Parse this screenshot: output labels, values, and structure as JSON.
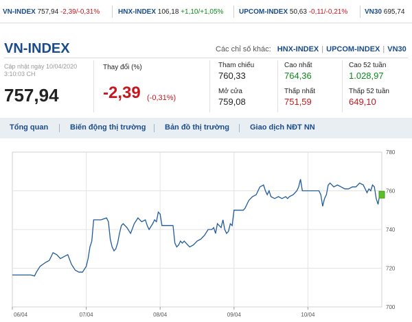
{
  "ticker": [
    {
      "name": "VN-INDEX",
      "value": "757,94",
      "change": "-2,39/-0,31%",
      "dir": "down"
    },
    {
      "name": "HNX-INDEX",
      "value": "106,18",
      "change": "+1,10/+1,05%",
      "dir": "up"
    },
    {
      "name": "UPCOM-INDEX",
      "value": "50,63",
      "change": "-0,11/-0,21%",
      "dir": "down"
    },
    {
      "name": "VN30",
      "value": "695,74",
      "change": "",
      "dir": ""
    }
  ],
  "header": {
    "title": "VN-INDEX",
    "others_label": "Các chỉ số khác:",
    "others": [
      "HNX-INDEX",
      "UPCOM-INDEX",
      "VN30"
    ]
  },
  "summary": {
    "updated": "Cập nhật ngày 10/04/2020 3:10:03 CH",
    "price": "757,94",
    "change_label": "Thay đổi (%)",
    "change": "-2,39",
    "change_pct": "(-0,31%)",
    "stats": {
      "ref_label": "Tham chiếu",
      "ref": "760,33",
      "open_label": "Mở cửa",
      "open": "759,08",
      "high_label": "Cao nhất",
      "high": "764,36",
      "low_label": "Thấp nhất",
      "low": "751,59",
      "high52_label": "Cao 52 tuần",
      "high52": "1.028,97",
      "low52_label": "Thấp 52 tuần",
      "low52": "649,10"
    }
  },
  "tabs": [
    "Tổng quan",
    "Biến động thị trường",
    "Bản đồ thị trường",
    "Giao dịch NĐT NN"
  ],
  "colors": {
    "brand": "#1a4b8c",
    "down": "#c8161d",
    "up": "#0b8a1a",
    "line": "#1f5a9a",
    "marker": "#5cbf2a"
  },
  "chart_data": {
    "type": "line",
    "x_ticks": [
      "06/04",
      "07/04",
      "08/04",
      "09/04",
      "10/04"
    ],
    "y_ticks": [
      700,
      720,
      740,
      760,
      780
    ],
    "ylim": [
      700,
      780
    ],
    "grid": true,
    "series": [
      {
        "values": [
          [
            0.0,
            716.5
          ],
          [
            0.05,
            716.5
          ],
          [
            0.06,
            716
          ],
          [
            0.065,
            718
          ],
          [
            0.075,
            721
          ],
          [
            0.09,
            723
          ],
          [
            0.1,
            724
          ],
          [
            0.11,
            728
          ],
          [
            0.12,
            727
          ],
          [
            0.13,
            725
          ],
          [
            0.14,
            726
          ],
          [
            0.15,
            727
          ],
          [
            0.16,
            722
          ],
          [
            0.17,
            719
          ],
          [
            0.18,
            718
          ],
          [
            0.19,
            718
          ],
          [
            0.2,
            721
          ],
          [
            0.205,
            725
          ],
          [
            0.21,
            731
          ],
          [
            0.215,
            734
          ],
          [
            0.22,
            745
          ],
          [
            0.24,
            745
          ],
          [
            0.255,
            746
          ],
          [
            0.26,
            744
          ],
          [
            0.265,
            735
          ],
          [
            0.27,
            731
          ],
          [
            0.275,
            729
          ],
          [
            0.28,
            730
          ],
          [
            0.285,
            733
          ],
          [
            0.29,
            738
          ],
          [
            0.295,
            742
          ],
          [
            0.3,
            743
          ],
          [
            0.31,
            741
          ],
          [
            0.32,
            738
          ],
          [
            0.33,
            743
          ],
          [
            0.34,
            746
          ],
          [
            0.35,
            744
          ],
          [
            0.36,
            745
          ],
          [
            0.365,
            742
          ],
          [
            0.37,
            740
          ],
          [
            0.38,
            743
          ],
          [
            0.385,
            745
          ],
          [
            0.39,
            744
          ],
          [
            0.395,
            749
          ],
          [
            0.4,
            748
          ],
          [
            0.405,
            742
          ],
          [
            0.435,
            742
          ],
          [
            0.44,
            733
          ],
          [
            0.445,
            731
          ],
          [
            0.45,
            732
          ],
          [
            0.455,
            734
          ],
          [
            0.46,
            733
          ],
          [
            0.465,
            734
          ],
          [
            0.47,
            733
          ],
          [
            0.48,
            731
          ],
          [
            0.49,
            732
          ],
          [
            0.5,
            734
          ],
          [
            0.51,
            735
          ],
          [
            0.52,
            737
          ],
          [
            0.53,
            740
          ],
          [
            0.54,
            740
          ],
          [
            0.545,
            741
          ],
          [
            0.55,
            738
          ],
          [
            0.555,
            743
          ],
          [
            0.56,
            742
          ],
          [
            0.565,
            741
          ],
          [
            0.57,
            745
          ],
          [
            0.575,
            740
          ],
          [
            0.58,
            738
          ],
          [
            0.585,
            739
          ],
          [
            0.59,
            743
          ],
          [
            0.595,
            742
          ],
          [
            0.6,
            750
          ],
          [
            0.625,
            750
          ],
          [
            0.63,
            751
          ],
          [
            0.64,
            755
          ],
          [
            0.65,
            757
          ],
          [
            0.66,
            758
          ],
          [
            0.67,
            762
          ],
          [
            0.68,
            763
          ],
          [
            0.685,
            760
          ],
          [
            0.69,
            758
          ],
          [
            0.695,
            760
          ],
          [
            0.7,
            757
          ],
          [
            0.71,
            756
          ],
          [
            0.72,
            757
          ],
          [
            0.73,
            756
          ],
          [
            0.74,
            757
          ],
          [
            0.745,
            756
          ],
          [
            0.75,
            757
          ],
          [
            0.76,
            758
          ],
          [
            0.77,
            760
          ],
          [
            0.775,
            762
          ],
          [
            0.78,
            766
          ],
          [
            0.785,
            760
          ],
          [
            0.79,
            760
          ],
          [
            0.83,
            760
          ],
          [
            0.835,
            758
          ],
          [
            0.84,
            752
          ],
          [
            0.845,
            756
          ],
          [
            0.85,
            758
          ],
          [
            0.855,
            763
          ],
          [
            0.86,
            764
          ],
          [
            0.87,
            762
          ],
          [
            0.88,
            763
          ],
          [
            0.89,
            762
          ],
          [
            0.9,
            761
          ],
          [
            0.91,
            761
          ],
          [
            0.92,
            762
          ],
          [
            0.93,
            762
          ],
          [
            0.94,
            764
          ],
          [
            0.95,
            763
          ],
          [
            0.96,
            759
          ],
          [
            0.965,
            761
          ],
          [
            0.97,
            760
          ],
          [
            0.975,
            763
          ],
          [
            0.98,
            762
          ],
          [
            0.985,
            756
          ],
          [
            0.99,
            753
          ],
          [
            0.995,
            759
          ],
          [
            1.0,
            758
          ]
        ]
      }
    ]
  }
}
